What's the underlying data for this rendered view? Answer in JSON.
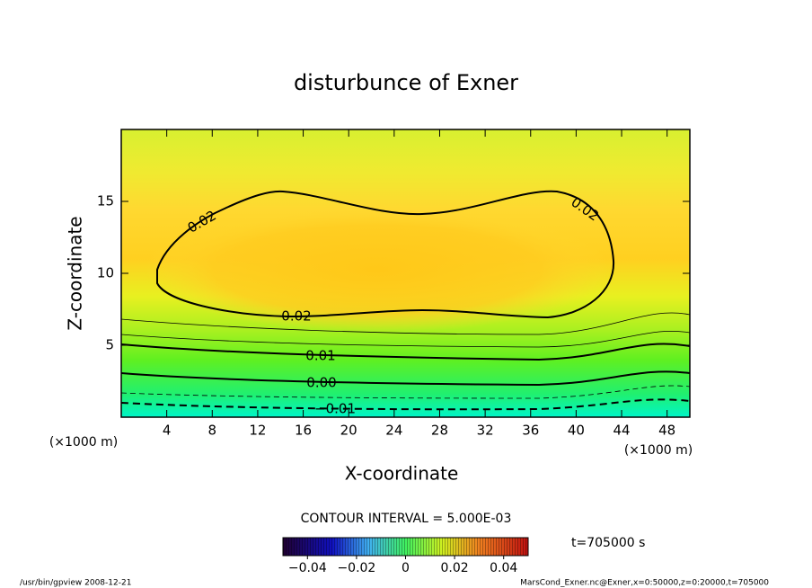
{
  "chart_data": {
    "type": "contour",
    "title": "disturbunce of Exner",
    "x_label": "X-coordinate",
    "y_label": "Z-coordinate",
    "x_unit": "(×1000 m)",
    "y_unit": "(×1000 m)",
    "xlim": [
      0,
      50
    ],
    "ylim": [
      0,
      20
    ],
    "xticks": [
      4,
      8,
      12,
      16,
      20,
      24,
      28,
      32,
      36,
      40,
      44,
      48
    ],
    "yticks": [
      5,
      10,
      15
    ],
    "contours": [
      {
        "value": 0.02,
        "label": "0.02"
      },
      {
        "value": 0.01,
        "label": "0.01"
      },
      {
        "value": 0,
        "label": "0.00"
      },
      {
        "value": -0.01,
        "label": "-0.01"
      }
    ],
    "contour_interval": "CONTOUR INTERVAL = 5.000E-03",
    "time_label": "t=705000 s",
    "colorbar": {
      "lim": [
        -0.05,
        0.05
      ],
      "ticks": [
        -0.04,
        -0.02,
        0,
        0.02,
        0.04
      ]
    },
    "footer_left": "/usr/bin/gpview   2008-12-21",
    "footer_right": "MarsCond_Exner.nc@Exner,x=0:50000,z=0:20000,t=705000"
  }
}
